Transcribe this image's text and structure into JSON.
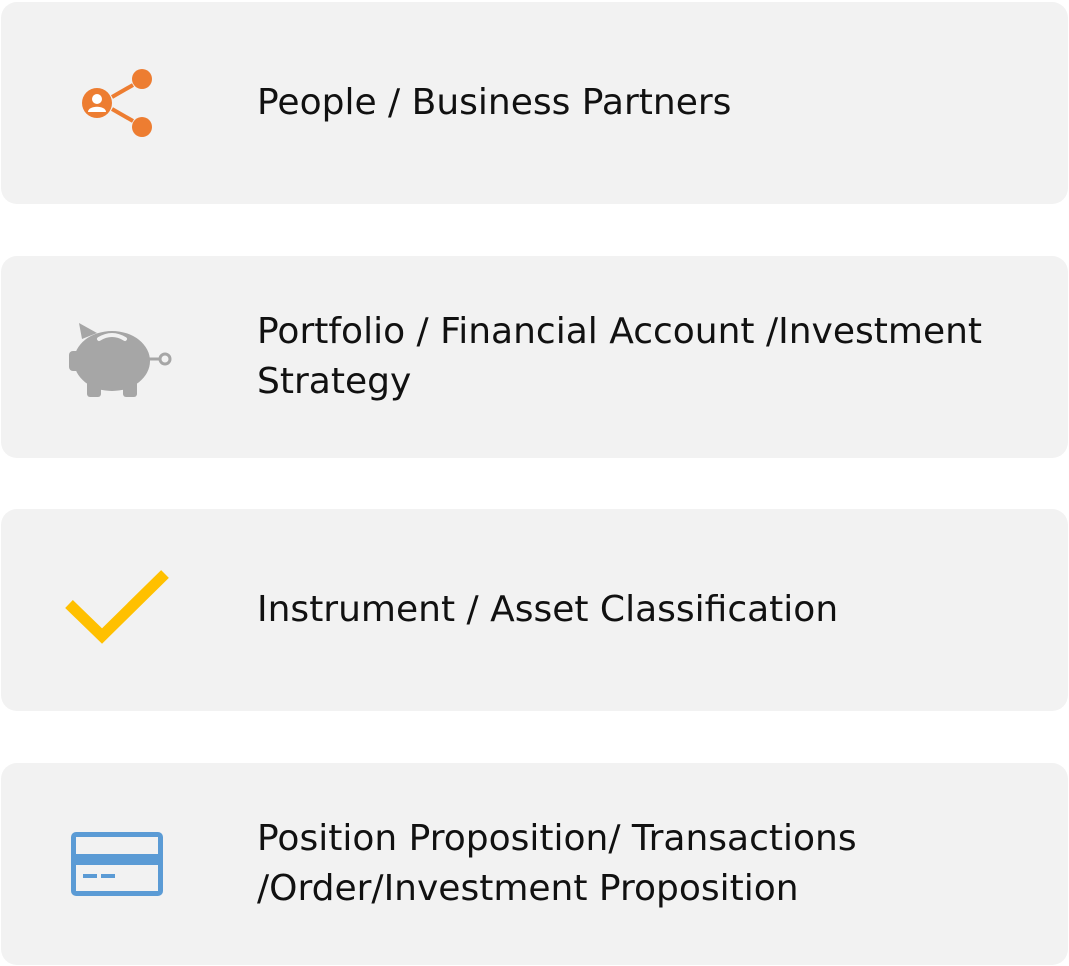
{
  "cards": [
    {
      "label": "People / Business Partners",
      "icon": "share-people-icon",
      "color": "#ED7D31"
    },
    {
      "label": "Portfolio / Financial Account /Investment\nStrategy",
      "icon": "piggy-bank-icon",
      "color": "#A6A6A6"
    },
    {
      "label": "Instrument / Asset Classification",
      "icon": "checkmark-icon",
      "color": "#FFC000"
    },
    {
      "label": "Position Proposition/ Transactions\n/Order/Investment Proposition",
      "icon": "credit-card-icon",
      "color": "#5B9BD5"
    }
  ]
}
